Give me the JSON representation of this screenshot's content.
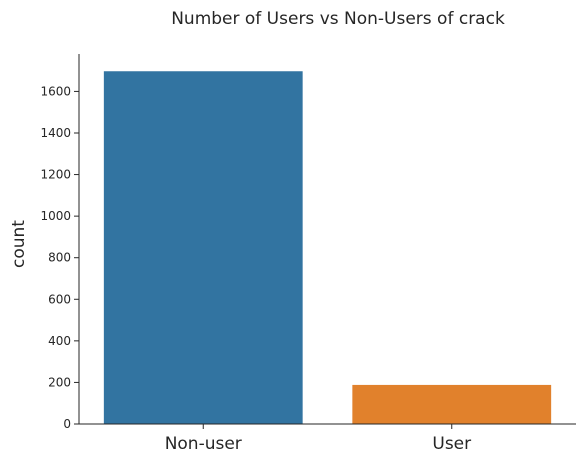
{
  "chart_data": {
    "type": "bar",
    "title": "Number of Users vs Non-Users of crack",
    "xlabel": "",
    "ylabel": "count",
    "categories": [
      "Non-user",
      "User"
    ],
    "values": [
      1697,
      188
    ],
    "colors": [
      "#3274a1",
      "#e1812c"
    ],
    "ylim": [
      0,
      1780
    ],
    "yticks": [
      0,
      200,
      400,
      600,
      800,
      1000,
      1200,
      1400,
      1600
    ],
    "grid": false,
    "legend": "none",
    "spines": [
      "left",
      "bottom"
    ]
  }
}
